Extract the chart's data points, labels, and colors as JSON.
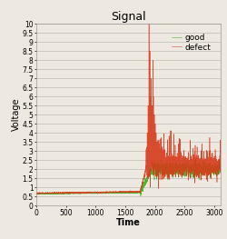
{
  "title": "Signal",
  "xlabel": "Time",
  "ylabel": "Voltage",
  "xlim": [
    0,
    3100
  ],
  "ylim": [
    0,
    10
  ],
  "yticks": [
    0,
    0.5,
    1,
    1.5,
    2,
    2.5,
    3,
    3.5,
    4,
    4.5,
    5,
    5.5,
    6,
    6.5,
    7,
    7.5,
    8,
    8.5,
    9,
    9.5,
    10
  ],
  "xticks": [
    0,
    500,
    1000,
    1500,
    2000,
    2500,
    3000
  ],
  "defect_color": "#d63a1a",
  "good_color": "#3ab020",
  "bg_color": "#ede8e0",
  "grid_color": "#b0b0b0",
  "legend_labels": [
    "defect",
    "good"
  ],
  "title_fontsize": 9,
  "label_fontsize": 7,
  "tick_fontsize": 5.5,
  "legend_fontsize": 6.5
}
